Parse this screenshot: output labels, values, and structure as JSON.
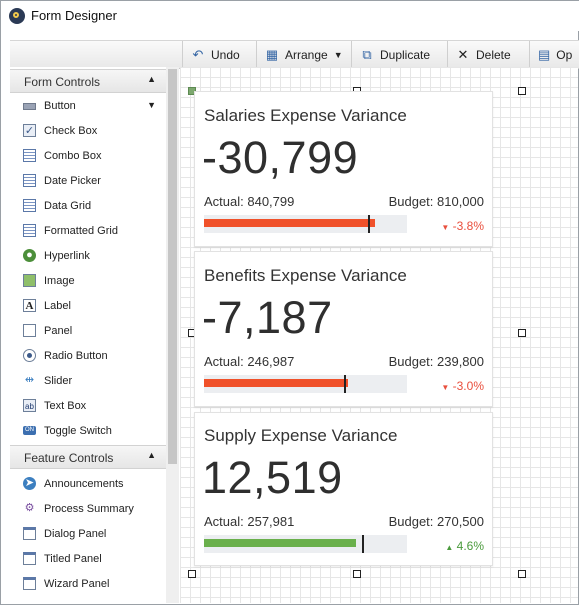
{
  "window": {
    "title": "Form Designer"
  },
  "toolbar": {
    "undo": "Undo",
    "arrange": "Arrange",
    "duplicate": "Duplicate",
    "delete": "Delete",
    "options": "Op"
  },
  "sidebar": {
    "form_controls": {
      "label": "Form Controls",
      "items": [
        "Button",
        "Check Box",
        "Combo Box",
        "Date Picker",
        "Data Grid",
        "Formatted Grid",
        "Hyperlink",
        "Image",
        "Label",
        "Panel",
        "Radio Button",
        "Slider",
        "Text Box",
        "Toggle Switch"
      ]
    },
    "feature_controls": {
      "label": "Feature Controls",
      "items": [
        "Announcements",
        "Process Summary",
        "Dialog Panel",
        "Titled Panel",
        "Wizard Panel"
      ]
    }
  },
  "colors": {
    "negative": "#f0512a",
    "positive": "#6ab04c",
    "negative_text": "#e94f3d",
    "positive_text": "#4a9a3c"
  },
  "cards": [
    {
      "title": "Salaries Expense Variance",
      "value": "-30,799",
      "actual": "Actual: 840,799",
      "budget": "Budget: 810,000",
      "change": "-3.8%",
      "trend": "down",
      "fill_fraction": 0.84,
      "marker_fraction": 0.81
    },
    {
      "title": "Benefits Expense Variance",
      "value": "-7,187",
      "actual": "Actual: 246,987",
      "budget": "Budget: 239,800",
      "change": "-3.0%",
      "trend": "down",
      "fill_fraction": 0.71,
      "marker_fraction": 0.69
    },
    {
      "title": "Supply Expense Variance",
      "value": "12,519",
      "actual": "Actual: 257,981",
      "budget": "Budget: 270,500",
      "change": "4.6%",
      "trend": "up",
      "fill_fraction": 0.75,
      "marker_fraction": 0.78
    }
  ]
}
